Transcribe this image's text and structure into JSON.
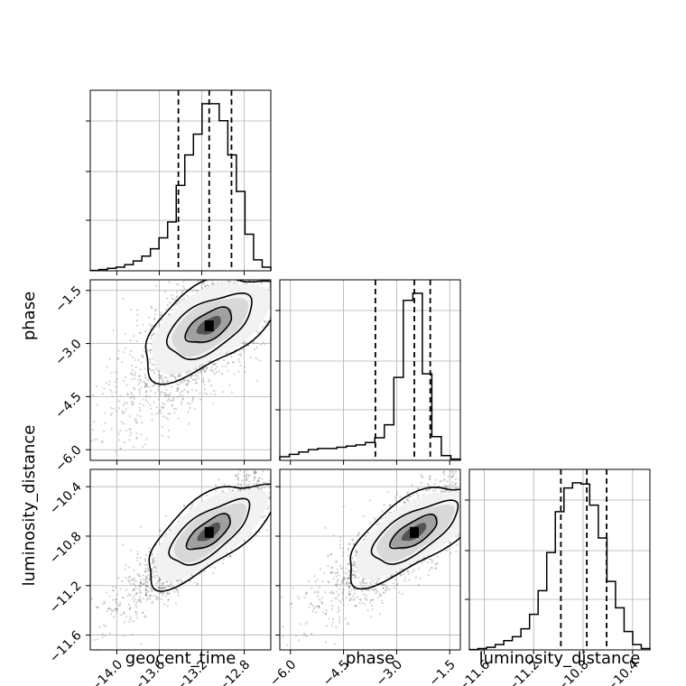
{
  "chart_data": {
    "type": "corner",
    "parameters": [
      "geocent_time",
      "phase",
      "luminosity_distance"
    ],
    "axis_labels": {
      "geocent_time": "geocent_time",
      "phase": "phase",
      "luminosity_distance": "luminosity_distance"
    },
    "ranges": {
      "geocent_time": [
        -14.25,
        -12.55
      ],
      "phase": [
        -6.3,
        -1.2
      ],
      "luminosity_distance": [
        -11.72,
        -10.26
      ]
    },
    "ticks": {
      "geocent_time": [
        -14.0,
        -13.6,
        -13.2,
        -12.8
      ],
      "phase": [
        -6.0,
        -4.5,
        -3.0,
        -1.5
      ],
      "luminosity_distance": [
        -11.6,
        -11.2,
        -10.8,
        -10.4
      ]
    },
    "tick_labels": {
      "geocent_time": [
        "−14.0",
        "−13.6",
        "−13.2",
        "−12.8"
      ],
      "phase": [
        "−6.0",
        "−4.5",
        "−3.0",
        "−1.5"
      ],
      "luminosity_distance": [
        "−11.6",
        "−11.2",
        "−10.8",
        "−10.4"
      ]
    },
    "quantiles": {
      "geocent_time": [
        -13.42,
        -13.13,
        -12.92
      ],
      "phase": [
        -3.6,
        -2.5,
        -2.05
      ],
      "luminosity_distance": [
        -10.98,
        -10.77,
        -10.61
      ]
    },
    "histograms": {
      "geocent_time": [
        0.3,
        1,
        2,
        3,
        5,
        8,
        12,
        18,
        27,
        40,
        70,
        95,
        112,
        137,
        137,
        123,
        95,
        65,
        30,
        9,
        3
      ],
      "phase": [
        3,
        5,
        7,
        9,
        10,
        10,
        11,
        12,
        13,
        15,
        19,
        30,
        70,
        135,
        141,
        73,
        20,
        4,
        1
      ],
      "luminosity_distance": [
        0.3,
        1,
        2,
        4,
        7,
        10,
        16,
        27,
        45,
        74,
        105,
        123,
        127,
        126,
        110,
        85,
        52,
        32,
        14,
        4,
        1
      ]
    },
    "correlations": {
      "phase|geocent_time": 0.6,
      "luminosity_distance|geocent_time": 0.85,
      "luminosity_distance|phase": 0.75
    },
    "colors": {
      "line": "#000000",
      "points": "#7f7f7f",
      "grid": "#b0b0b0"
    },
    "grid": true
  }
}
